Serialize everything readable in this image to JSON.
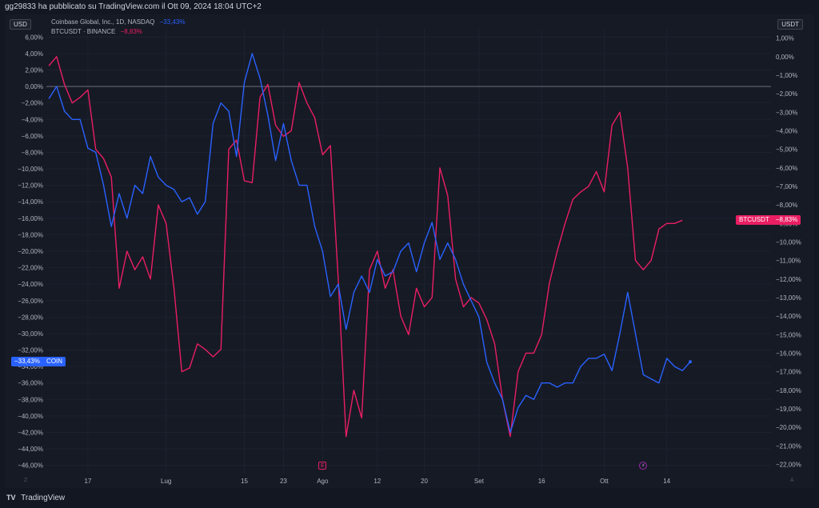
{
  "header": {
    "published_text": "gg29833 ha pubblicato su TradingView.com il Ott 09, 2024 18:04 UTC+2"
  },
  "footer": {
    "brand": "TradingView",
    "logo_icon": "tradingview-logo-icon"
  },
  "left_currency": "USD",
  "right_currency": "USDT",
  "legend": {
    "coin_name": "Coinbase Global, Inc., 1D, NASDAQ",
    "coin_change": "−33,43%",
    "btc_name": "BTCUSDT · BINANCE",
    "btc_change": "−8,83%"
  },
  "tags": {
    "coin_value": "−33,43%",
    "coin_symbol": "COIN",
    "btc_symbol": "BTCUSDT",
    "btc_value": "−8,83%"
  },
  "markers": {
    "earnings_glyph": "E",
    "earnings_icon": "earnings-icon",
    "flash_glyph": "⚡",
    "flash_icon": "lightning-icon"
  },
  "corners": {
    "left": "Z",
    "right": "A"
  },
  "colors": {
    "coin": "#2962ff",
    "btc": "#e91e63",
    "background": "#161a25"
  },
  "chart_data": {
    "type": "line",
    "x_labels": [
      "17",
      "Lug",
      "15",
      "23",
      "Ago",
      "12",
      "20",
      "Set",
      "16",
      "Ott",
      "14"
    ],
    "x_label_index": [
      5,
      15,
      25,
      30,
      35,
      42,
      48,
      55,
      63,
      71,
      79
    ],
    "left_axis": {
      "unit": "%",
      "range": [
        -47,
        7
      ],
      "ticks": [
        6,
        4,
        2,
        0,
        -2,
        -4,
        -6,
        -8,
        -10,
        -12,
        -14,
        -16,
        -18,
        -20,
        -22,
        -24,
        -26,
        -28,
        -30,
        -32,
        -34,
        -36,
        -38,
        -40,
        -42,
        -44,
        -46
      ],
      "tick_labels": [
        "6,00%",
        "4,00%",
        "2,00%",
        "0,00%",
        "−2,00%",
        "−4,00%",
        "−6,00%",
        "−8,00%",
        "−10,00%",
        "−12,00%",
        "−14,00%",
        "−16,00%",
        "−18,00%",
        "−20,00%",
        "−22,00%",
        "−24,00%",
        "−26,00%",
        "−28,00%",
        "−30,00%",
        "−32,00%",
        "−34,00%",
        "−36,00%",
        "−38,00%",
        "−40,00%",
        "−42,00%",
        "−44,00%",
        "−46,00%"
      ]
    },
    "right_axis": {
      "unit": "%",
      "range": [
        -22.5,
        1.5
      ],
      "ticks": [
        1,
        0,
        -1,
        -2,
        -3,
        -4,
        -5,
        -6,
        -7,
        -8,
        -9,
        -10,
        -11,
        -12,
        -13,
        -14,
        -15,
        -16,
        -17,
        -18,
        -19,
        -20,
        -21,
        -22
      ],
      "tick_labels": [
        "1,00%",
        "0,00%",
        "−1,00%",
        "−2,00%",
        "−3,00%",
        "−4,00%",
        "−5,00%",
        "−6,00%",
        "−7,00%",
        "−8,00%",
        "−9,00%",
        "−10,00%",
        "−11,00%",
        "−12,00%",
        "−13,00%",
        "−14,00%",
        "−15,00%",
        "−16,00%",
        "−17,00%",
        "−18,00%",
        "−19,00%",
        "−20,00%",
        "−21,00%",
        "−22,00%"
      ]
    },
    "series": [
      {
        "name": "Coinbase Global, Inc., 1D, NASDAQ",
        "axis": "left",
        "values": [
          -1.5,
          0,
          -3,
          -4,
          -4,
          -7.5,
          -8,
          -12,
          -17,
          -13,
          -16,
          -12,
          -13,
          -8.5,
          -11,
          -12,
          -12.5,
          -14,
          -13.5,
          -15.5,
          -14,
          -4.5,
          -2,
          -3,
          -8.5,
          0.5,
          4,
          1,
          -3.5,
          -9,
          -4.5,
          -9,
          -12,
          -12,
          -17,
          -20,
          -25.5,
          -24,
          -29.5,
          -25,
          -23,
          -25,
          -21,
          -23,
          -22.5,
          -20,
          -19,
          -22.5,
          -19,
          -16.5,
          -21,
          -19,
          -21,
          -24,
          -26,
          -28,
          -33.5,
          -36,
          -38,
          -42,
          -39,
          -37.5,
          -38,
          -36,
          -36,
          -36.5,
          -36,
          -36,
          -34,
          -33,
          -33,
          -32.5,
          -34.5,
          -30,
          -25,
          -30,
          -35,
          -35.5,
          -36,
          -33,
          -34,
          -34.5,
          -33.43
        ]
      },
      {
        "name": "BTCUSDT · BINANCE",
        "axis": "right",
        "values": [
          -0.5,
          0,
          -1.5,
          -2.5,
          -2.2,
          -1.8,
          -5,
          -5.5,
          -6.5,
          -12.5,
          -10.5,
          -11.5,
          -10.8,
          -12,
          -8,
          -9,
          -12.5,
          -17,
          -16.8,
          -15.5,
          -15.8,
          -16.2,
          -15.8,
          -5,
          -4.5,
          -6.7,
          -6.8,
          -2.2,
          -1.5,
          -3.7,
          -4.3,
          -4,
          -1.4,
          -2.5,
          -3.3,
          -5.3,
          -4.8,
          -12,
          -20.5,
          -18,
          -19.5,
          -11.5,
          -10.5,
          -12.5,
          -11.5,
          -14,
          -15,
          -12.5,
          -13.5,
          -13,
          -6,
          -7.5,
          -12,
          -13.5,
          -13,
          -13.3,
          -14.2,
          -15.5,
          -18.5,
          -20.5,
          -17,
          -16,
          -16,
          -15,
          -12.2,
          -10.5,
          -9,
          -7.7,
          -7.3,
          -7,
          -6.2,
          -7.3,
          -3.7,
          -3,
          -6,
          -11,
          -11.5,
          -11,
          -9.3,
          -9,
          -9,
          -8.83
        ]
      }
    ]
  }
}
